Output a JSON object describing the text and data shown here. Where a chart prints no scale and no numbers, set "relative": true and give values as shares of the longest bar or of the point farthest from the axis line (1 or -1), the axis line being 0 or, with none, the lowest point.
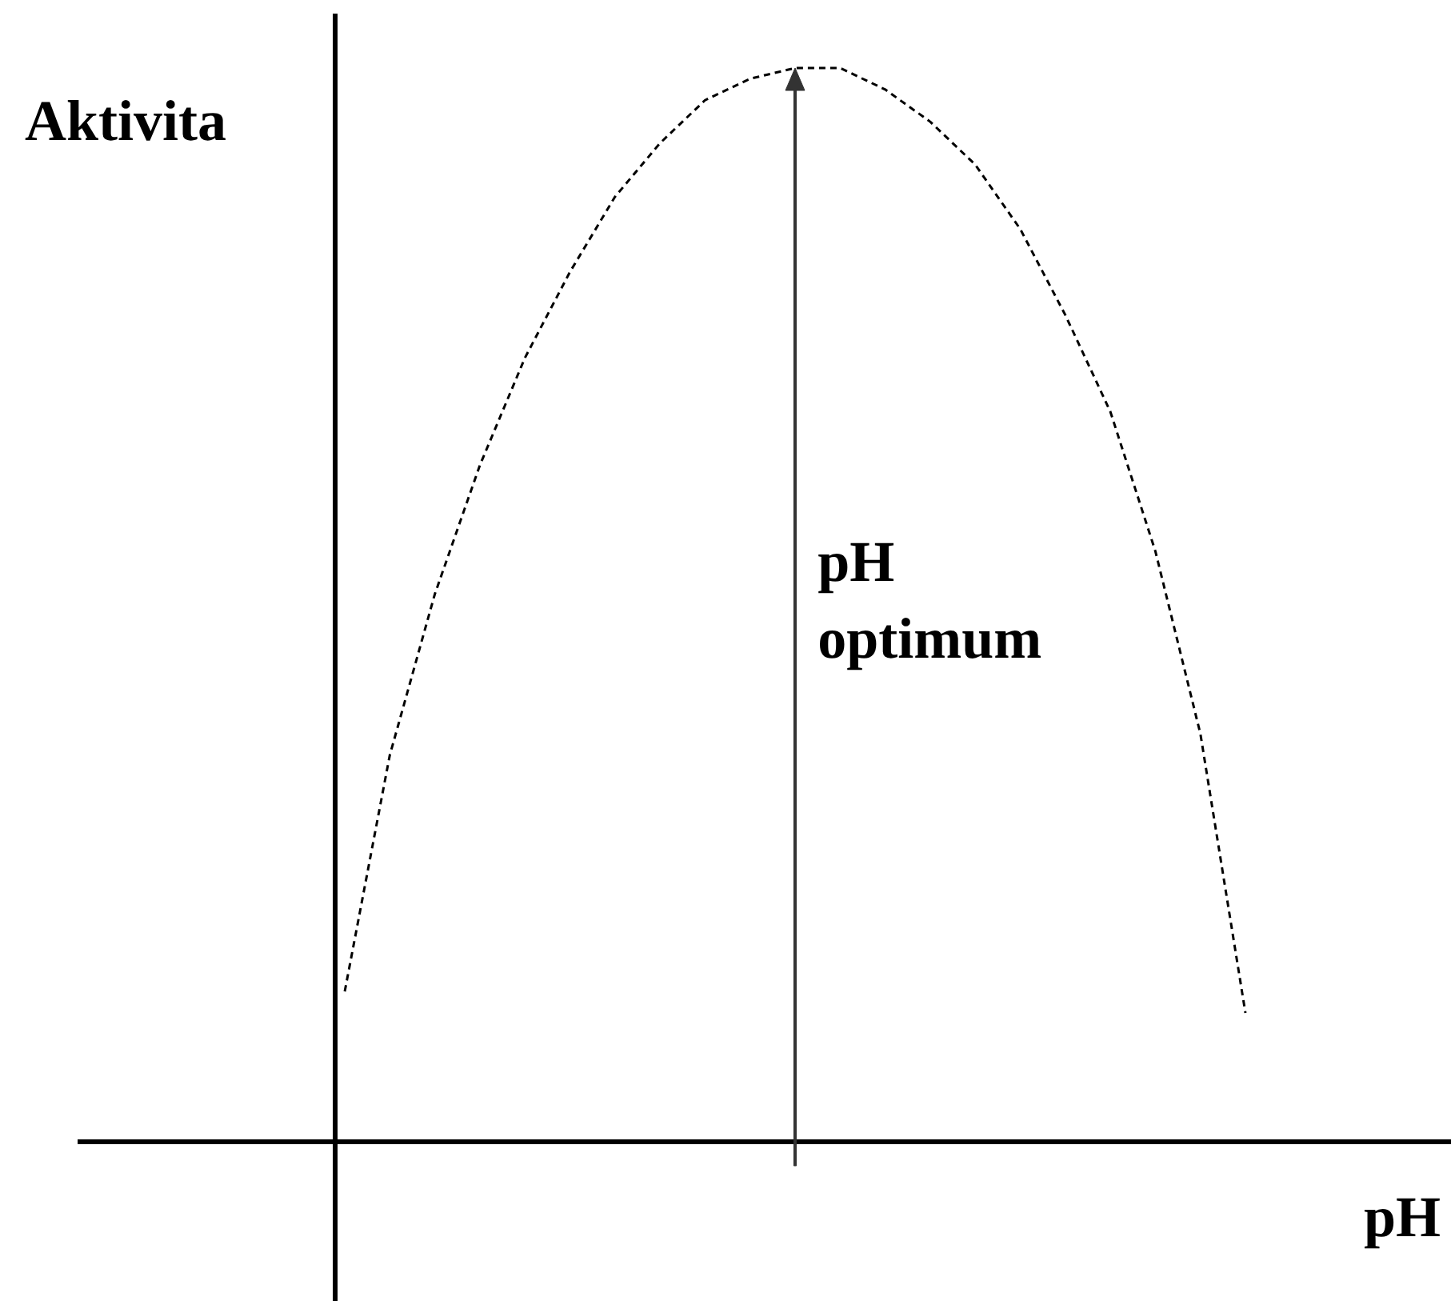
{
  "chart_data": {
    "type": "line",
    "relative": true,
    "xlabel": "pH",
    "ylabel": "Aktivita",
    "annotations": [
      "pH optimum"
    ],
    "line_style": "dashed",
    "marker": "none",
    "grid": false,
    "tick_labels": false,
    "categories": [
      null,
      null,
      null,
      null,
      null,
      null,
      null,
      null,
      null,
      null,
      null,
      null,
      null,
      null,
      null,
      null,
      null,
      null,
      null,
      null,
      null
    ],
    "series": [
      {
        "color": "#000000",
        "values": [
          0.14,
          0.36,
          0.51,
          0.63,
          0.73,
          0.81,
          0.88,
          0.93,
          0.97,
          0.99,
          1,
          1,
          0.98,
          0.95,
          0.91,
          0.85,
          0.77,
          0.68,
          0.55,
          0.38,
          0.12
        ]
      }
    ]
  }
}
